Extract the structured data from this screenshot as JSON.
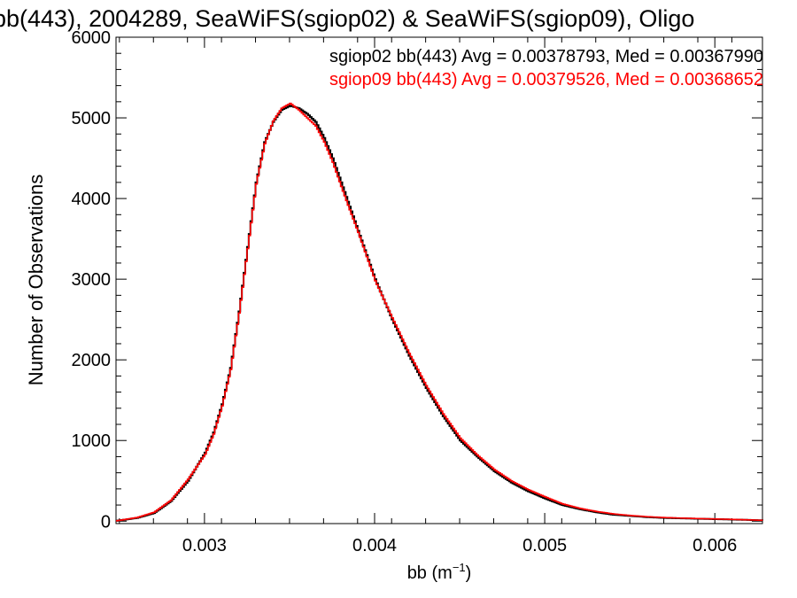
{
  "chart_data": {
    "type": "line",
    "title": "bb(443), 2004289, SeaWiFS(sgiop02) & SeaWiFS(sgiop09), Oligo",
    "xlabel_main": "bb (m",
    "xlabel_sup": "−1",
    "xlabel_close": ")",
    "ylabel": "Number of Observations",
    "xlim": [
      0.00248,
      0.00628
    ],
    "ylim": [
      -30,
      6000
    ],
    "xticks": [
      "0.003",
      "0.004",
      "0.005",
      "0.006"
    ],
    "xtick_values": [
      0.003,
      0.004,
      0.005,
      0.006
    ],
    "yticks": [
      "0",
      "1000",
      "2000",
      "3000",
      "4000",
      "5000",
      "6000"
    ],
    "ytick_values": [
      0,
      1000,
      2000,
      3000,
      4000,
      5000,
      6000
    ],
    "legend": [
      {
        "text": "sgiop02 bb(443) Avg = 0.00378793, Med = 0.00367990",
        "color": "#000000"
      },
      {
        "text": "sgiop09 bb(443) Avg = 0.00379526, Med = 0.00368652",
        "color": "#ff0000"
      }
    ],
    "series": [
      {
        "color": "#000000",
        "x": [
          0.00248,
          0.0026,
          0.0027,
          0.0028,
          0.0029,
          0.003,
          0.00305,
          0.0031,
          0.00315,
          0.0032,
          0.00325,
          0.0033,
          0.00335,
          0.0034,
          0.00345,
          0.0035,
          0.00355,
          0.0036,
          0.00365,
          0.0037,
          0.00375,
          0.0038,
          0.00385,
          0.0039,
          0.00395,
          0.004,
          0.0041,
          0.0042,
          0.0043,
          0.0044,
          0.0045,
          0.0046,
          0.0047,
          0.0048,
          0.0049,
          0.005,
          0.0051,
          0.0052,
          0.0053,
          0.0054,
          0.0055,
          0.0056,
          0.0057,
          0.0058,
          0.0059,
          0.006,
          0.0061,
          0.0062,
          0.00628
        ],
        "y": [
          5,
          40,
          100,
          250,
          500,
          850,
          1100,
          1450,
          1900,
          2600,
          3400,
          4200,
          4700,
          4950,
          5100,
          5150,
          5120,
          5050,
          4950,
          4750,
          4500,
          4200,
          3900,
          3600,
          3300,
          3000,
          2500,
          2050,
          1650,
          1300,
          1000,
          800,
          620,
          480,
          370,
          280,
          200,
          150,
          110,
          80,
          65,
          50,
          40,
          35,
          30,
          25,
          20,
          15,
          10
        ]
      },
      {
        "color": "#ff0000",
        "x": [
          0.00248,
          0.0026,
          0.0027,
          0.0028,
          0.0029,
          0.003,
          0.00305,
          0.0031,
          0.00315,
          0.0032,
          0.00325,
          0.0033,
          0.00335,
          0.0034,
          0.00345,
          0.0035,
          0.00355,
          0.0036,
          0.00365,
          0.0037,
          0.00375,
          0.0038,
          0.00385,
          0.0039,
          0.00395,
          0.004,
          0.0041,
          0.0042,
          0.0043,
          0.0044,
          0.0045,
          0.0046,
          0.0047,
          0.0048,
          0.0049,
          0.005,
          0.0051,
          0.0052,
          0.0053,
          0.0054,
          0.0055,
          0.0056,
          0.0057,
          0.0058,
          0.0059,
          0.006,
          0.0061,
          0.0062,
          0.00628
        ],
        "y": [
          5,
          45,
          110,
          260,
          520,
          830,
          1080,
          1430,
          1880,
          2580,
          3380,
          4180,
          4680,
          4960,
          5120,
          5180,
          5100,
          5000,
          4900,
          4700,
          4450,
          4150,
          3860,
          3580,
          3280,
          2980,
          2520,
          2080,
          1680,
          1330,
          1030,
          820,
          640,
          500,
          390,
          300,
          215,
          160,
          120,
          90,
          70,
          55,
          45,
          38,
          32,
          27,
          22,
          16,
          10
        ]
      }
    ]
  }
}
